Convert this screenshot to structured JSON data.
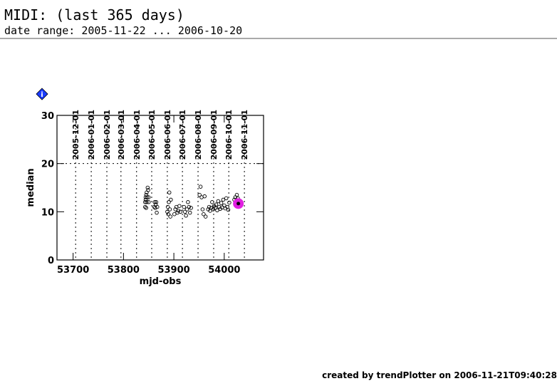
{
  "title": "MIDI: (last 365 days)",
  "subtitle": "date range: 2005-11-22 ... 2006-10-20",
  "footer": "created by trendPlotter on 2006-11-21T09:40:28",
  "chart_data": {
    "type": "scatter",
    "xlabel": "mjd-obs",
    "ylabel": "median",
    "xlim": [
      53668,
      54078
    ],
    "ylim": [
      0,
      30
    ],
    "xticks": [
      53700,
      53800,
      53900,
      54000
    ],
    "yticks": [
      0,
      10,
      20,
      30
    ],
    "x2ticks": [
      {
        "value": 53705,
        "label": "2005-12-01"
      },
      {
        "value": 53736,
        "label": "2006-01-01"
      },
      {
        "value": 53767,
        "label": "2006-02-01"
      },
      {
        "value": 53795,
        "label": "2006-03-01"
      },
      {
        "value": 53826,
        "label": "2006-04-01"
      },
      {
        "value": 53856,
        "label": "2006-05-01"
      },
      {
        "value": 53887,
        "label": "2006-06-01"
      },
      {
        "value": 53917,
        "label": "2006-07-01"
      },
      {
        "value": 53948,
        "label": "2006-08-01"
      },
      {
        "value": 53979,
        "label": "2006-09-01"
      },
      {
        "value": 54009,
        "label": "2006-10-01"
      },
      {
        "value": 54040,
        "label": "2006-11-01"
      }
    ],
    "ygrid": [
      20
    ],
    "series": [
      {
        "color": "#000000",
        "x": [
          53843,
          53843,
          53844,
          53844,
          53845,
          53845,
          53846,
          53846,
          53847,
          53848,
          53849,
          53850,
          53850,
          53861,
          53862,
          53863,
          53864,
          53865,
          53866,
          53867,
          53887,
          53888,
          53889,
          53890,
          53891,
          53892,
          53893,
          53894,
          53901,
          53903,
          53905,
          53907,
          53909,
          53911,
          53913,
          53920,
          53922,
          53924,
          53926,
          53928,
          53930,
          53932,
          53934,
          53951,
          53953,
          53955,
          53957,
          53959,
          53961,
          53963,
          53968,
          53970,
          53972,
          53974,
          53976,
          53978,
          53980,
          53982,
          53984,
          53986,
          53988,
          53990,
          53992,
          53994,
          53996,
          53998,
          54000,
          54002,
          54004,
          54006,
          54008,
          54010,
          54020,
          54022,
          54024,
          54025,
          54026,
          54027
        ],
        "values": [
          11,
          12,
          13,
          12.5,
          13.5,
          10.8,
          12,
          14,
          13,
          15,
          14.5,
          12,
          13,
          11,
          12,
          10.8,
          11.5,
          12,
          9.8,
          11,
          10,
          11,
          9.5,
          12,
          14,
          10.5,
          9,
          12.5,
          9.5,
          10.5,
          11,
          9.8,
          10.2,
          11.2,
          10,
          11,
          10,
          9.2,
          10.5,
          12,
          11,
          9.8,
          10.8,
          13.5,
          15.2,
          13,
          10.5,
          9.5,
          13.2,
          9,
          10.5,
          11,
          10.2,
          10.8,
          12,
          10.5,
          11.2,
          10.8,
          11.5,
          10.3,
          12.2,
          11,
          10.6,
          11.8,
          10.9,
          12.5,
          11.3,
          10.7,
          12.8,
          11,
          10.4,
          11.9,
          12.5,
          13,
          12,
          13.5,
          11.5,
          12.8
        ]
      },
      {
        "color": "#e020e0",
        "x": [
          54028
        ],
        "values": [
          11.7
        ]
      }
    ]
  }
}
